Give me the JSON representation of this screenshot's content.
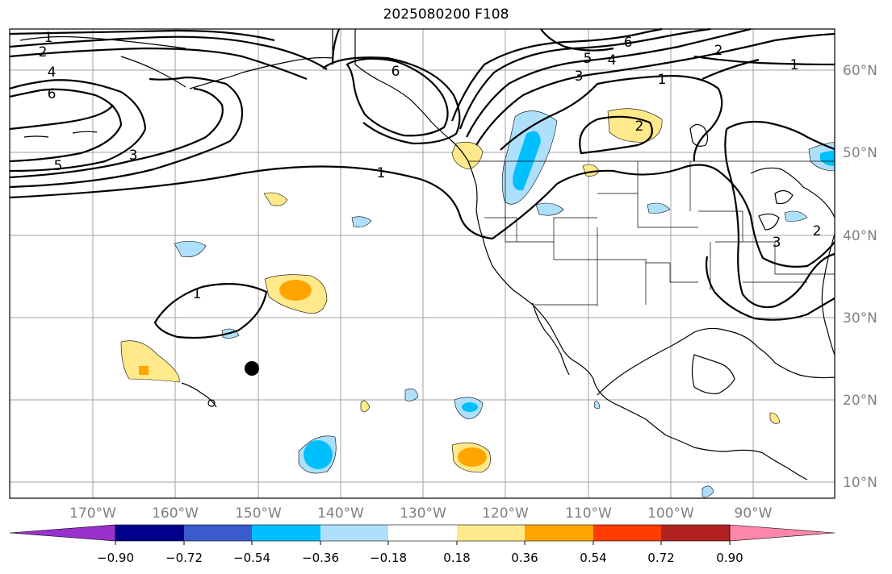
{
  "title": "2025080200 F108",
  "lon_labels": [
    "170°W",
    "160°W",
    "150°W",
    "140°W",
    "130°W",
    "120°W",
    "110°W",
    "100°W",
    "90°W"
  ],
  "lat_labels": [
    "60°N",
    "50°N",
    "40°N",
    "30°N",
    "20°N",
    "10°N"
  ],
  "colorbar": {
    "ticks": [
      "−0.90",
      "−0.72",
      "−0.54",
      "−0.36",
      "−0.18",
      "0.18",
      "0.36",
      "0.54",
      "0.72",
      "0.90"
    ],
    "colors": [
      "#9932cc",
      "#00008b",
      "#3a5bcc",
      "#00bfff",
      "#aee0fb",
      "#ffffff",
      "#ffe98a",
      "#ffa500",
      "#ff3d00",
      "#b22222",
      "#ff88aa"
    ]
  },
  "contour_labels": [
    "1",
    "2",
    "4",
    "6",
    "5",
    "3",
    "1",
    "6",
    "6",
    "5",
    "4",
    "3",
    "2",
    "1",
    "1",
    "2",
    "1",
    "3",
    "2"
  ],
  "colors": {
    "grid": "#a0a0a0",
    "axis_text": "#808080"
  }
}
